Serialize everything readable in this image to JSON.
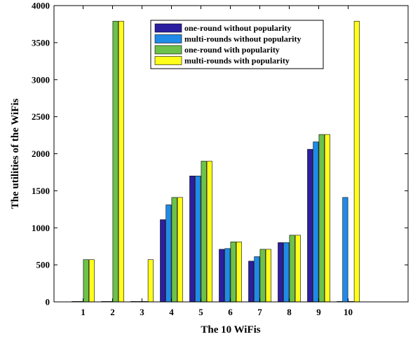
{
  "chart_data": {
    "type": "bar",
    "title": "",
    "xlabel": "The 10 WiFis",
    "ylabel": "The utilities of the WiFis",
    "categories": [
      "1",
      "2",
      "3",
      "4",
      "5",
      "6",
      "7",
      "8",
      "9",
      "10"
    ],
    "ylim": [
      0,
      4000
    ],
    "yticks": [
      "0",
      "500",
      "1000",
      "1500",
      "2000",
      "2500",
      "3000",
      "3500",
      "4000"
    ],
    "grid": false,
    "legend_position": "top-center",
    "series": [
      {
        "name": "one-round without popularity",
        "color": "#2b1fa0",
        "values": [
          0,
          0,
          0,
          1110,
          1700,
          710,
          550,
          800,
          2060,
          0
        ]
      },
      {
        "name": "multi-rounds without popularity",
        "color": "#1f8be8",
        "values": [
          0,
          0,
          0,
          1310,
          1700,
          720,
          610,
          800,
          2160,
          1410
        ]
      },
      {
        "name": "one-round with popularity",
        "color": "#6cc24a",
        "values": [
          570,
          3790,
          0,
          1410,
          1900,
          810,
          710,
          900,
          2260,
          0
        ]
      },
      {
        "name": "multi-rounds with popularity",
        "color": "#ffff1a",
        "values": [
          570,
          3790,
          570,
          1410,
          1900,
          810,
          710,
          900,
          2260,
          3790
        ]
      }
    ]
  }
}
